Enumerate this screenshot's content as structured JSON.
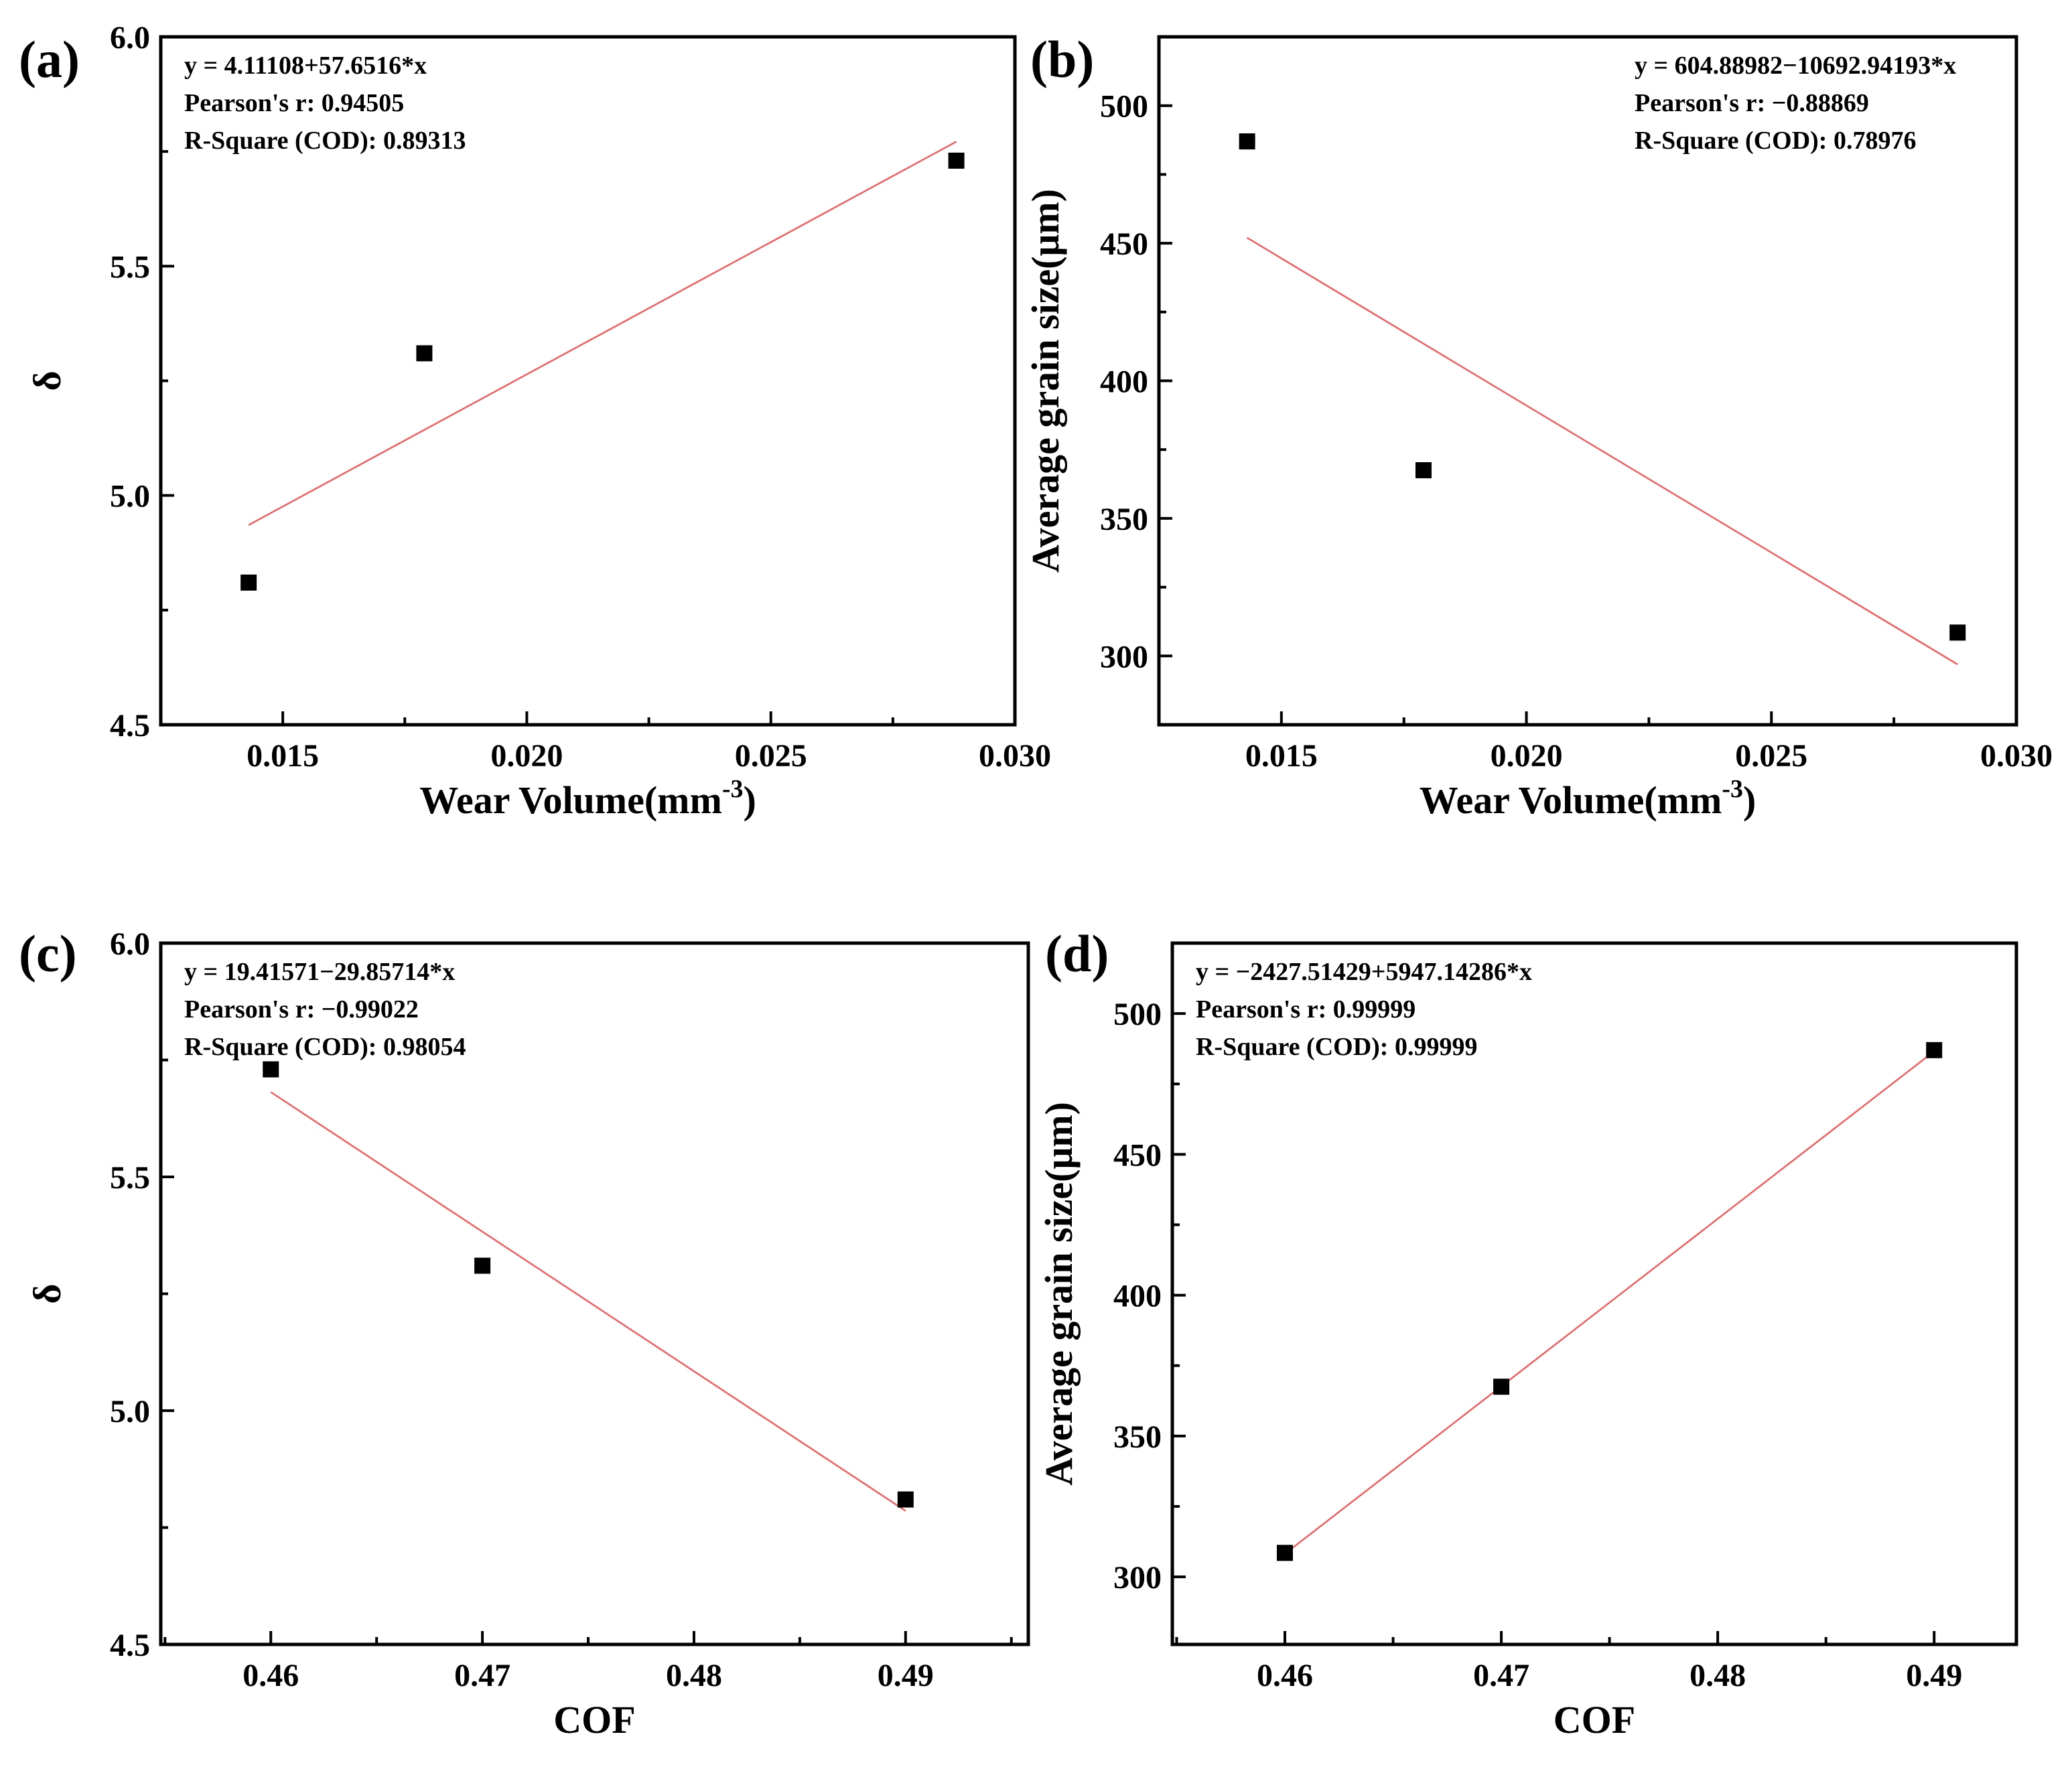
{
  "chart_data": [
    {
      "type": "scatter",
      "panel": "(a)",
      "xlabel": "Wear Volume(mm",
      "xlabel_sup": "-3",
      "xlabel_end": ")",
      "ylabel": "δ",
      "xlim": [
        0.0125,
        0.03
      ],
      "ylim": [
        4.5,
        6.0
      ],
      "xticks": [
        0.015,
        0.02,
        0.025,
        0.03
      ],
      "xtick_labels": [
        "0.015",
        "0.020",
        "0.025",
        "0.030"
      ],
      "yticks": [
        4.5,
        5.0,
        5.5,
        6.0
      ],
      "ytick_labels": [
        "4.5",
        "5.0",
        "5.5",
        "6.0"
      ],
      "points": [
        {
          "x": 0.0143,
          "y": 4.81
        },
        {
          "x": 0.0179,
          "y": 5.31
        },
        {
          "x": 0.0288,
          "y": 5.73
        }
      ],
      "fit": {
        "intercept": 4.11108,
        "slope": 57.6516,
        "x_range": [
          0.0143,
          0.0288
        ]
      },
      "equation_lines": [
        "y = 4.11108+57.6516*x",
        "Pearson's r: 0.94505",
        "R-Square (COD): 0.89313"
      ],
      "equation_position": "top-left"
    },
    {
      "type": "scatter",
      "panel": "(b)",
      "xlabel": "Wear Volume(mm",
      "xlabel_sup": "-3",
      "xlabel_end": ")",
      "ylabel": "Average grain size(μm)",
      "xlim": [
        0.0125,
        0.03
      ],
      "ylim": [
        275,
        525
      ],
      "xticks": [
        0.015,
        0.02,
        0.025,
        0.03
      ],
      "xtick_labels": [
        "0.015",
        "0.020",
        "0.025",
        "0.030"
      ],
      "yticks": [
        300,
        350,
        400,
        450,
        500
      ],
      "ytick_labels": [
        "300",
        "350",
        "400",
        "450",
        "500"
      ],
      "points": [
        {
          "x": 0.0143,
          "y": 487
        },
        {
          "x": 0.0179,
          "y": 367.5
        },
        {
          "x": 0.0288,
          "y": 308.5
        }
      ],
      "fit": {
        "intercept": 604.88982,
        "slope": -10692.94193,
        "x_range": [
          0.0143,
          0.0288
        ]
      },
      "equation_lines": [
        "y = 604.88982−10692.94193*x",
        "Pearson's r: −0.88869",
        "R-Square (COD): 0.78976"
      ],
      "equation_position": "top-right"
    },
    {
      "type": "scatter",
      "panel": "(c)",
      "xlabel": "COF",
      "xlabel_sup": "",
      "xlabel_end": "",
      "ylabel": "δ",
      "xlim": [
        0.4548,
        0.4958
      ],
      "ylim": [
        4.5,
        6.0
      ],
      "xticks": [
        0.46,
        0.47,
        0.48,
        0.49
      ],
      "xtick_labels": [
        "0.46",
        "0.47",
        "0.48",
        "0.49"
      ],
      "yticks": [
        4.5,
        5.0,
        5.5,
        6.0
      ],
      "ytick_labels": [
        "4.5",
        "5.0",
        "5.5",
        "6.0"
      ],
      "points": [
        {
          "x": 0.46,
          "y": 5.73
        },
        {
          "x": 0.47,
          "y": 5.31
        },
        {
          "x": 0.49,
          "y": 4.81
        }
      ],
      "fit": {
        "intercept": 19.41571,
        "slope": -29.85714,
        "x_range": [
          0.46,
          0.49
        ]
      },
      "equation_lines": [
        "y = 19.41571−29.85714*x",
        "Pearson's r: −0.99022",
        "R-Square (COD): 0.98054"
      ],
      "equation_position": "top-left"
    },
    {
      "type": "scatter",
      "panel": "(d)",
      "xlabel": "COF",
      "xlabel_sup": "",
      "xlabel_end": "",
      "ylabel": "Average grain size(μm)",
      "xlim": [
        0.4548,
        0.4938
      ],
      "ylim": [
        276,
        525
      ],
      "xticks": [
        0.46,
        0.47,
        0.48,
        0.49
      ],
      "xtick_labels": [
        "0.46",
        "0.47",
        "0.48",
        "0.49"
      ],
      "yticks": [
        300,
        350,
        400,
        450,
        500
      ],
      "ytick_labels": [
        "300",
        "350",
        "400",
        "450",
        "500"
      ],
      "points": [
        {
          "x": 0.46,
          "y": 308.5
        },
        {
          "x": 0.47,
          "y": 367.5
        },
        {
          "x": 0.49,
          "y": 487
        }
      ],
      "fit": {
        "intercept": -2427.51429,
        "slope": 5947.14286,
        "x_range": [
          0.46,
          0.49
        ]
      },
      "equation_lines": [
        "y = −2427.51429+5947.14286*x",
        "Pearson's r: 0.99999",
        "R-Square (COD): 0.99999"
      ],
      "equation_position": "top-left"
    }
  ]
}
